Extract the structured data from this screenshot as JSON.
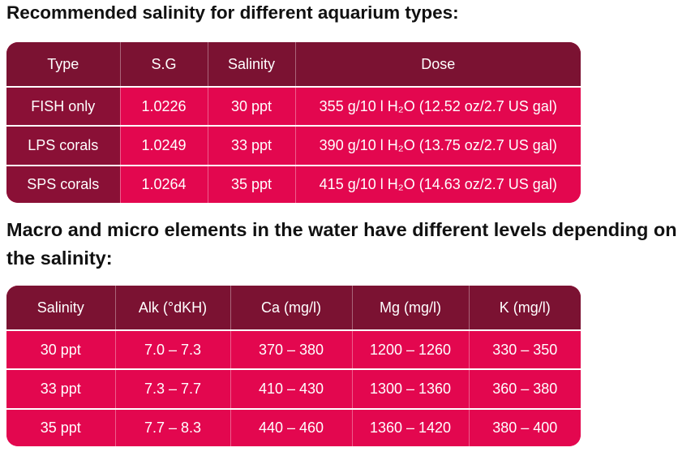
{
  "heading_1": "Recommended salinity for different aquarium types:",
  "table_1": {
    "header": [
      "Type",
      "S.G",
      "Salinity",
      "Dose"
    ],
    "rows": [
      [
        "FISH only",
        "1.0226",
        "30 ppt",
        "355 g/10 l H₂O (12.52 oz/2.7 US gal)"
      ],
      [
        "LPS corals",
        "1.0249",
        "33 ppt",
        "390 g/10 l H₂O (13.75 oz/2.7 US gal)"
      ],
      [
        "SPS corals",
        "1.0264",
        "35 ppt",
        "415 g/10 l H₂O (14.63 oz/2.7 US gal)"
      ]
    ]
  },
  "heading_2": "Macro and micro elements in the water have different levels depending on the salinity:",
  "table_2": {
    "header": [
      "Salinity",
      "Alk (°dKH)",
      "Ca (mg/l)",
      "Mg (mg/l)",
      "K (mg/l)"
    ],
    "rows": [
      [
        "30 ppt",
        "7.0 – 7.3",
        "370 – 380",
        "1200 – 1260",
        "330 – 350"
      ],
      [
        "33 ppt",
        "7.3 – 7.7",
        "410 – 430",
        "1300 – 1360",
        "360 – 380"
      ],
      [
        "35 ppt",
        "7.7 – 8.3",
        "440 – 460",
        "1360 – 1420",
        "380 – 400"
      ]
    ]
  }
}
